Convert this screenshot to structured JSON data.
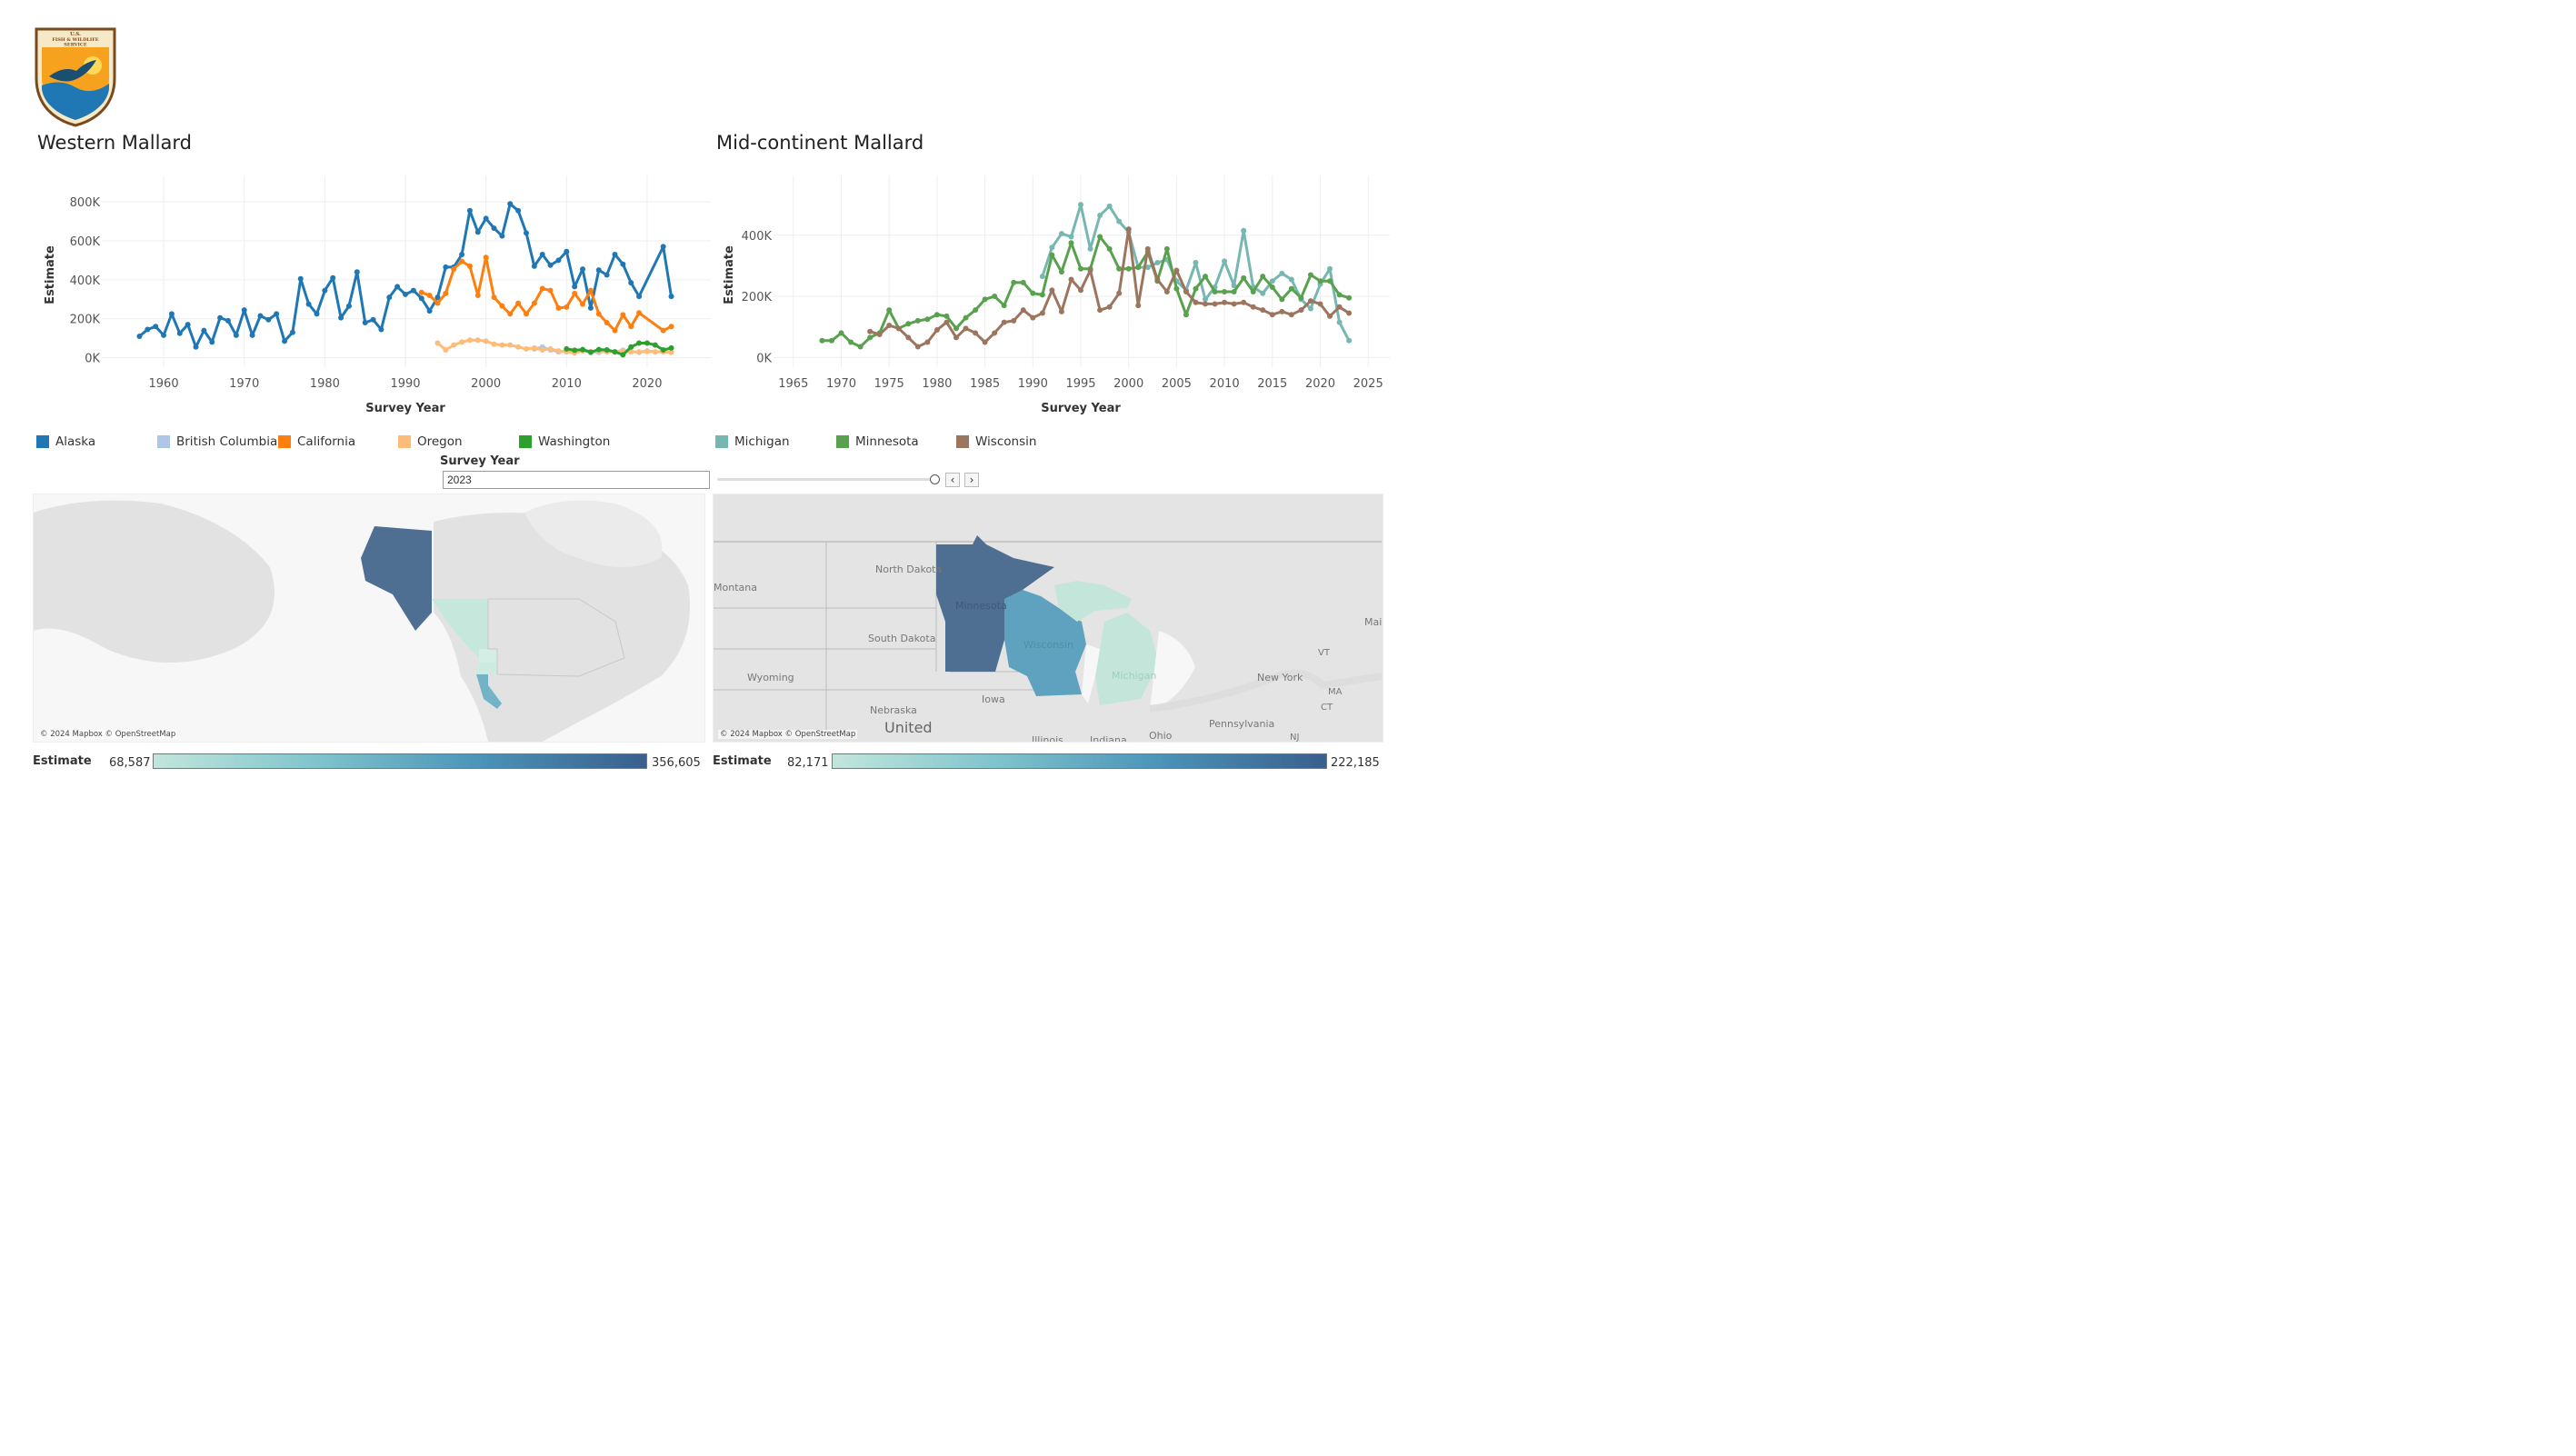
{
  "logo": {
    "name": "U.S. Fish & Wildlife Service",
    "lines": [
      "U.S.",
      "FISH & WILDLIFE",
      "SERVICE"
    ],
    "bottom_text": "DEPARTMENT OF THE INTERIOR"
  },
  "colors": {
    "Alaska": "#1f77b4",
    "British Columbia": "#aec7e8",
    "California": "#ff7f0e",
    "Oregon": "#ffbb78",
    "Washington": "#2ca02c",
    "Michigan": "#76b7b2",
    "Minnesota": "#59a14f",
    "Wisconsin": "#9c755f",
    "grid": "#eeeeee",
    "map_land": "#e0e0e0",
    "map_water": "#f6f6f6"
  },
  "western": {
    "title": "Western Mallard"
  },
  "midcontinent": {
    "title": "Mid-continent Mallard"
  },
  "chart_data": [
    {
      "type": "line",
      "title": "Western Mallard",
      "xlabel": "Survey Year",
      "ylabel": "Estimate",
      "xlim": [
        1953,
        2027
      ],
      "ylim": [
        -30000,
        880000
      ],
      "xticks": [
        1960,
        1970,
        1980,
        1990,
        2000,
        2010,
        2020
      ],
      "yticks": [
        0,
        200000,
        400000,
        600000,
        800000
      ],
      "ytick_labels": [
        "0K",
        "200K",
        "400K",
        "600K",
        "800K"
      ],
      "grid": true,
      "series": [
        {
          "name": "Alaska",
          "x": [
            1957,
            1958,
            1959,
            1960,
            1961,
            1962,
            1963,
            1964,
            1965,
            1966,
            1967,
            1968,
            1969,
            1970,
            1971,
            1972,
            1973,
            1974,
            1975,
            1976,
            1977,
            1978,
            1979,
            1980,
            1981,
            1982,
            1983,
            1984,
            1985,
            1986,
            1987,
            1988,
            1989,
            1990,
            1991,
            1992,
            1993,
            1994,
            1995,
            1996,
            1997,
            1998,
            1999,
            2000,
            2001,
            2002,
            2003,
            2004,
            2005,
            2006,
            2007,
            2008,
            2009,
            2010,
            2011,
            2012,
            2013,
            2014,
            2015,
            2016,
            2017,
            2018,
            2019,
            2022,
            2023
          ],
          "y": [
            110000,
            145000,
            160000,
            115000,
            225000,
            125000,
            170000,
            55000,
            140000,
            80000,
            205000,
            190000,
            115000,
            245000,
            115000,
            215000,
            195000,
            225000,
            85000,
            130000,
            405000,
            275000,
            225000,
            345000,
            410000,
            205000,
            265000,
            440000,
            180000,
            195000,
            145000,
            310000,
            365000,
            325000,
            345000,
            305000,
            240000,
            310000,
            465000,
            465000,
            530000,
            755000,
            645000,
            715000,
            665000,
            625000,
            790000,
            755000,
            640000,
            470000,
            530000,
            475000,
            500000,
            545000,
            365000,
            455000,
            255000,
            450000,
            425000,
            530000,
            480000,
            385000,
            315000,
            570000,
            315000
          ]
        },
        {
          "name": "British Columbia",
          "x": [
            2006,
            2007,
            2008,
            2009,
            2010,
            2011,
            2012,
            2013,
            2014,
            2015,
            2016,
            2017,
            2018,
            2019,
            2020,
            2021,
            2022,
            2023
          ],
          "y": [
            45000,
            55000,
            40000,
            30000,
            35000,
            30000,
            40000,
            32000,
            28000,
            35000,
            30000,
            38000,
            32000,
            28000,
            35000,
            30000,
            32000,
            28000
          ]
        },
        {
          "name": "California",
          "x": [
            1992,
            1993,
            1994,
            1995,
            1996,
            1997,
            1998,
            1999,
            2000,
            2001,
            2002,
            2003,
            2004,
            2005,
            2006,
            2007,
            2008,
            2009,
            2010,
            2011,
            2012,
            2013,
            2014,
            2015,
            2016,
            2017,
            2018,
            2019,
            2022,
            2023
          ],
          "y": [
            335000,
            320000,
            280000,
            330000,
            455000,
            495000,
            470000,
            320000,
            515000,
            310000,
            265000,
            225000,
            280000,
            225000,
            280000,
            355000,
            345000,
            255000,
            260000,
            330000,
            275000,
            345000,
            225000,
            180000,
            140000,
            220000,
            160000,
            230000,
            140000,
            160000
          ]
        },
        {
          "name": "Oregon",
          "x": [
            1994,
            1995,
            1996,
            1997,
            1998,
            1999,
            2000,
            2001,
            2002,
            2003,
            2004,
            2005,
            2006,
            2007,
            2008,
            2009,
            2010,
            2011,
            2012,
            2013,
            2014,
            2015,
            2016,
            2017,
            2018,
            2019,
            2020,
            2021,
            2022,
            2023
          ],
          "y": [
            75000,
            40000,
            65000,
            80000,
            90000,
            90000,
            85000,
            70000,
            65000,
            65000,
            55000,
            45000,
            50000,
            40000,
            45000,
            35000,
            30000,
            25000,
            35000,
            30000,
            35000,
            30000,
            30000,
            35000,
            30000,
            30000,
            32000,
            30000,
            30000,
            28000
          ]
        },
        {
          "name": "Washington",
          "x": [
            2010,
            2011,
            2012,
            2013,
            2014,
            2015,
            2016,
            2017,
            2018,
            2019,
            2020,
            2021,
            2022,
            2023
          ],
          "y": [
            45000,
            38000,
            42000,
            28000,
            42000,
            40000,
            30000,
            15000,
            55000,
            75000,
            75000,
            65000,
            40000,
            50000
          ]
        }
      ]
    },
    {
      "type": "line",
      "title": "Mid-continent Mallard",
      "xlabel": "Survey Year",
      "ylabel": "Estimate",
      "xlim": [
        1963.5,
        2026.5
      ],
      "ylim": [
        -20000,
        560000
      ],
      "xticks": [
        1965,
        1970,
        1975,
        1980,
        1985,
        1990,
        1995,
        2000,
        2005,
        2010,
        2015,
        2020,
        2025
      ],
      "yticks": [
        0,
        200000,
        400000
      ],
      "ytick_labels": [
        "0K",
        "200K",
        "400K"
      ],
      "grid": true,
      "series": [
        {
          "name": "Michigan",
          "x": [
            1991,
            1992,
            1993,
            1994,
            1995,
            1996,
            1997,
            1998,
            1999,
            2000,
            2001,
            2002,
            2003,
            2004,
            2005,
            2006,
            2007,
            2008,
            2009,
            2010,
            2011,
            2012,
            2013,
            2014,
            2015,
            2016,
            2017,
            2018,
            2019,
            2020,
            2021,
            2022,
            2023
          ],
          "y": [
            265000,
            360000,
            405000,
            395000,
            500000,
            355000,
            465000,
            495000,
            445000,
            410000,
            295000,
            295000,
            310000,
            320000,
            250000,
            220000,
            310000,
            190000,
            230000,
            315000,
            235000,
            415000,
            230000,
            210000,
            250000,
            275000,
            255000,
            190000,
            160000,
            240000,
            290000,
            115000,
            55000
          ]
        },
        {
          "name": "Minnesota",
          "x": [
            1968,
            1969,
            1970,
            1971,
            1972,
            1973,
            1974,
            1975,
            1976,
            1977,
            1978,
            1979,
            1980,
            1981,
            1982,
            1983,
            1984,
            1985,
            1986,
            1987,
            1988,
            1989,
            1990,
            1991,
            1992,
            1993,
            1994,
            1995,
            1996,
            1997,
            1998,
            1999,
            2000,
            2001,
            2002,
            2003,
            2004,
            2005,
            2006,
            2007,
            2008,
            2009,
            2010,
            2011,
            2012,
            2013,
            2014,
            2015,
            2016,
            2017,
            2018,
            2019,
            2020,
            2021,
            2022,
            2023
          ],
          "y": [
            55000,
            55000,
            80000,
            50000,
            35000,
            65000,
            80000,
            155000,
            95000,
            110000,
            120000,
            125000,
            140000,
            135000,
            95000,
            130000,
            155000,
            190000,
            200000,
            170000,
            245000,
            245000,
            210000,
            205000,
            335000,
            280000,
            375000,
            290000,
            290000,
            395000,
            355000,
            290000,
            290000,
            295000,
            345000,
            250000,
            355000,
            225000,
            140000,
            225000,
            265000,
            215000,
            215000,
            215000,
            260000,
            215000,
            265000,
            230000,
            190000,
            225000,
            195000,
            270000,
            250000,
            250000,
            205000,
            195000
          ]
        },
        {
          "name": "Wisconsin",
          "x": [
            1973,
            1974,
            1975,
            1976,
            1977,
            1978,
            1979,
            1980,
            1981,
            1982,
            1983,
            1984,
            1985,
            1986,
            1987,
            1988,
            1989,
            1990,
            1991,
            1992,
            1993,
            1994,
            1995,
            1996,
            1997,
            1998,
            1999,
            2000,
            2001,
            2002,
            2003,
            2004,
            2005,
            2006,
            2007,
            2008,
            2009,
            2010,
            2011,
            2012,
            2013,
            2014,
            2015,
            2016,
            2017,
            2018,
            2019,
            2020,
            2021,
            2022,
            2023
          ],
          "y": [
            85000,
            75000,
            105000,
            95000,
            65000,
            35000,
            50000,
            90000,
            115000,
            65000,
            95000,
            80000,
            50000,
            80000,
            115000,
            120000,
            155000,
            130000,
            145000,
            220000,
            150000,
            255000,
            220000,
            285000,
            155000,
            165000,
            210000,
            420000,
            170000,
            355000,
            255000,
            215000,
            285000,
            215000,
            180000,
            175000,
            175000,
            180000,
            175000,
            180000,
            165000,
            155000,
            140000,
            150000,
            140000,
            155000,
            185000,
            175000,
            135000,
            165000,
            145000
          ]
        }
      ]
    }
  ],
  "legend": {
    "western": [
      "Alaska",
      "British Columbia",
      "California",
      "Oregon",
      "Washington"
    ],
    "midcontinent": [
      "Michigan",
      "Minnesota",
      "Wisconsin"
    ]
  },
  "filter": {
    "label": "Survey Year",
    "value": "2023",
    "prev": "‹",
    "next": "›"
  },
  "maps": {
    "attribution": "© 2024 Mapbox © OpenStreetMap",
    "mid_labels": [
      "North Dakota",
      "Montana",
      "South Dakota",
      "Wyoming",
      "Nebraska",
      "Iowa",
      "Minnesota",
      "Wisconsin",
      "Michigan",
      "New York",
      "Pennsylvania",
      "Ohio",
      "United",
      "Illinois",
      "Indiana",
      "VT",
      "MA",
      "CT",
      "NJ",
      "Mai"
    ]
  },
  "west_scale": {
    "label": "Estimate",
    "min": "68,587",
    "max": "356,605"
  },
  "mid_scale": {
    "label": "Estimate",
    "min": "82,171",
    "max": "222,185"
  }
}
